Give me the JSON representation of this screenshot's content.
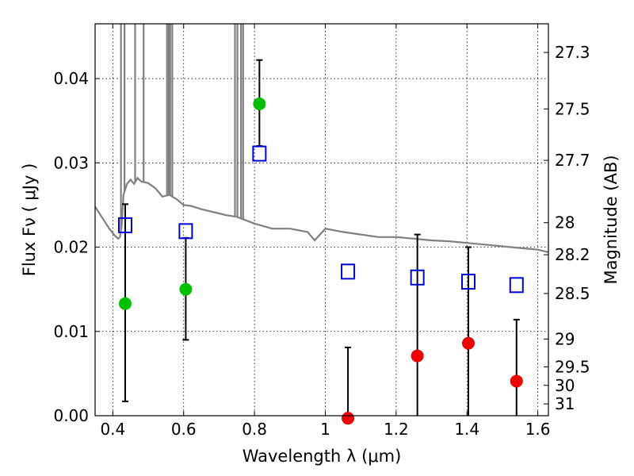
{
  "chart_data": {
    "type": "scatter",
    "xlabel": "Wavelength  λ (μm)",
    "ylabel": "Flux  Fν  ( μJy )",
    "y2label": "Magnitude (AB)",
    "xlim": [
      0.35,
      1.63
    ],
    "ylim": [
      0.0,
      0.0465
    ],
    "grid": true,
    "x_ticks": [
      0.4,
      0.6,
      0.8,
      1.0,
      1.2,
      1.4,
      1.6
    ],
    "x_tick_labels": [
      "0.4",
      "0.6",
      "0.8",
      "1",
      "1.2",
      "1.4",
      "1.6"
    ],
    "y_ticks": [
      0.0,
      0.01,
      0.02,
      0.03,
      0.04
    ],
    "y_tick_labels": [
      "0.00",
      "0.01",
      "0.02",
      "0.03",
      "0.04"
    ],
    "y2_ticks": [
      {
        "label": "27.3",
        "flux": 0.0431
      },
      {
        "label": "27.5",
        "flux": 0.0364
      },
      {
        "label": "27.7",
        "flux": 0.0303
      },
      {
        "label": "28",
        "flux": 0.0229
      },
      {
        "label": "28.2",
        "flux": 0.0191
      },
      {
        "label": "28.5",
        "flux": 0.0145
      },
      {
        "label": "29",
        "flux": 0.0091
      },
      {
        "label": "29.5",
        "flux": 0.0058
      },
      {
        "label": "30",
        "flux": 0.0036
      },
      {
        "label": "31",
        "flux": 0.0014
      }
    ],
    "series": [
      {
        "marker": "circle",
        "color": "#00c000",
        "points": [
          {
            "x": 0.435,
            "y": 0.0133,
            "yerr_low": 0.0017,
            "yerr_high": 0.0251
          },
          {
            "x": 0.606,
            "y": 0.015,
            "yerr_low": 0.009,
            "yerr_high": 0.0211
          },
          {
            "x": 0.814,
            "y": 0.037,
            "yerr_low": 0.032,
            "yerr_high": 0.0422
          }
        ]
      },
      {
        "marker": "circle",
        "color": "#ee0000",
        "points": [
          {
            "x": 1.064,
            "y": -0.0003,
            "yerr_low": 0.0,
            "yerr_high": 0.0081
          },
          {
            "x": 1.26,
            "y": 0.0071,
            "yerr_low": 0.0,
            "yerr_high": 0.0215
          },
          {
            "x": 1.404,
            "y": 0.0086,
            "yerr_low": 0.0,
            "yerr_high": 0.02
          },
          {
            "x": 1.54,
            "y": 0.0041,
            "yerr_low": 0.0,
            "yerr_high": 0.0114
          }
        ]
      },
      {
        "marker": "square",
        "color": "#0000dd",
        "points": [
          {
            "x": 0.435,
            "y": 0.0226
          },
          {
            "x": 0.606,
            "y": 0.0219
          },
          {
            "x": 0.814,
            "y": 0.0311
          },
          {
            "x": 1.064,
            "y": 0.0171
          },
          {
            "x": 1.26,
            "y": 0.0164
          },
          {
            "x": 1.404,
            "y": 0.0159
          },
          {
            "x": 1.54,
            "y": 0.0155
          }
        ]
      }
    ],
    "model_spectrum": {
      "color": "#808080",
      "x": [
        0.35,
        0.37,
        0.39,
        0.405,
        0.415,
        0.42,
        0.425,
        0.43,
        0.44,
        0.45,
        0.46,
        0.47,
        0.48,
        0.5,
        0.52,
        0.54,
        0.56,
        0.58,
        0.6,
        0.62,
        0.65,
        0.68,
        0.7,
        0.72,
        0.75,
        0.8,
        0.85,
        0.9,
        0.95,
        0.97,
        1.0,
        1.05,
        1.1,
        1.15,
        1.2,
        1.25,
        1.3,
        1.35,
        1.4,
        1.45,
        1.5,
        1.55,
        1.6,
        1.63
      ],
      "y": [
        0.0248,
        0.0235,
        0.0222,
        0.0214,
        0.021,
        0.0212,
        0.0225,
        0.0262,
        0.0275,
        0.028,
        0.0275,
        0.0282,
        0.0278,
        0.0276,
        0.027,
        0.026,
        0.0262,
        0.0257,
        0.025,
        0.0249,
        0.0245,
        0.0242,
        0.024,
        0.0238,
        0.0236,
        0.0228,
        0.0222,
        0.0222,
        0.0218,
        0.0208,
        0.0222,
        0.0218,
        0.0215,
        0.0212,
        0.0212,
        0.021,
        0.0208,
        0.0207,
        0.0205,
        0.0203,
        0.0201,
        0.0199,
        0.0197,
        0.0194
      ],
      "spikes": [
        {
          "x": 0.423,
          "y": 0.0465
        },
        {
          "x": 0.433,
          "y": 0.0465
        },
        {
          "x": 0.463,
          "y": 0.0465
        },
        {
          "x": 0.487,
          "y": 0.0465
        },
        {
          "x": 0.553,
          "y": 0.0465
        },
        {
          "x": 0.558,
          "y": 0.0465
        },
        {
          "x": 0.562,
          "y": 0.0465
        },
        {
          "x": 0.568,
          "y": 0.0465
        },
        {
          "x": 0.745,
          "y": 0.0465
        },
        {
          "x": 0.752,
          "y": 0.0465
        },
        {
          "x": 0.762,
          "y": 0.0465
        },
        {
          "x": 0.768,
          "y": 0.0465
        }
      ]
    }
  }
}
